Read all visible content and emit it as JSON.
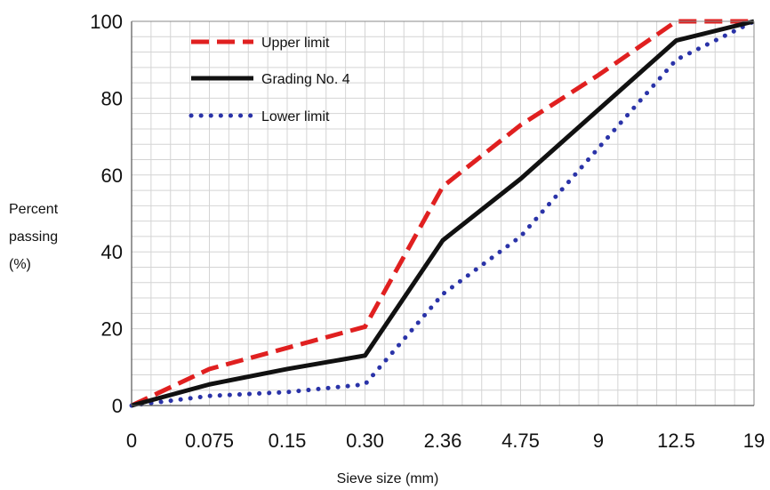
{
  "chart_data": {
    "type": "line",
    "categories": [
      "0",
      "0.075",
      "0.15",
      "0.30",
      "2.36",
      "4.75",
      "9",
      "12.5",
      "19"
    ],
    "series": [
      {
        "name": "Upper limit",
        "values": [
          0,
          9.5,
          15,
          20.5,
          57,
          73,
          86,
          100,
          100
        ],
        "color": "#e02020",
        "style": "dashed"
      },
      {
        "name": "Grading No. 4",
        "values": [
          0,
          5.5,
          9.5,
          13,
          43,
          59,
          77,
          95,
          100
        ],
        "color": "#111111",
        "style": "solid"
      },
      {
        "name": "Lower limit",
        "values": [
          0,
          2.5,
          3.5,
          5.5,
          29,
          44,
          67,
          90,
          100
        ],
        "color": "#2a33a8",
        "style": "dotted"
      }
    ],
    "title": "",
    "xlabel": "Sieve size (mm)",
    "ylabel_lines": [
      "Percent",
      "passing",
      "(%)"
    ],
    "ylim": [
      0,
      100
    ],
    "yticks": [
      0,
      20,
      40,
      60,
      80,
      100
    ],
    "grid": true,
    "legend_position": "top-left"
  }
}
